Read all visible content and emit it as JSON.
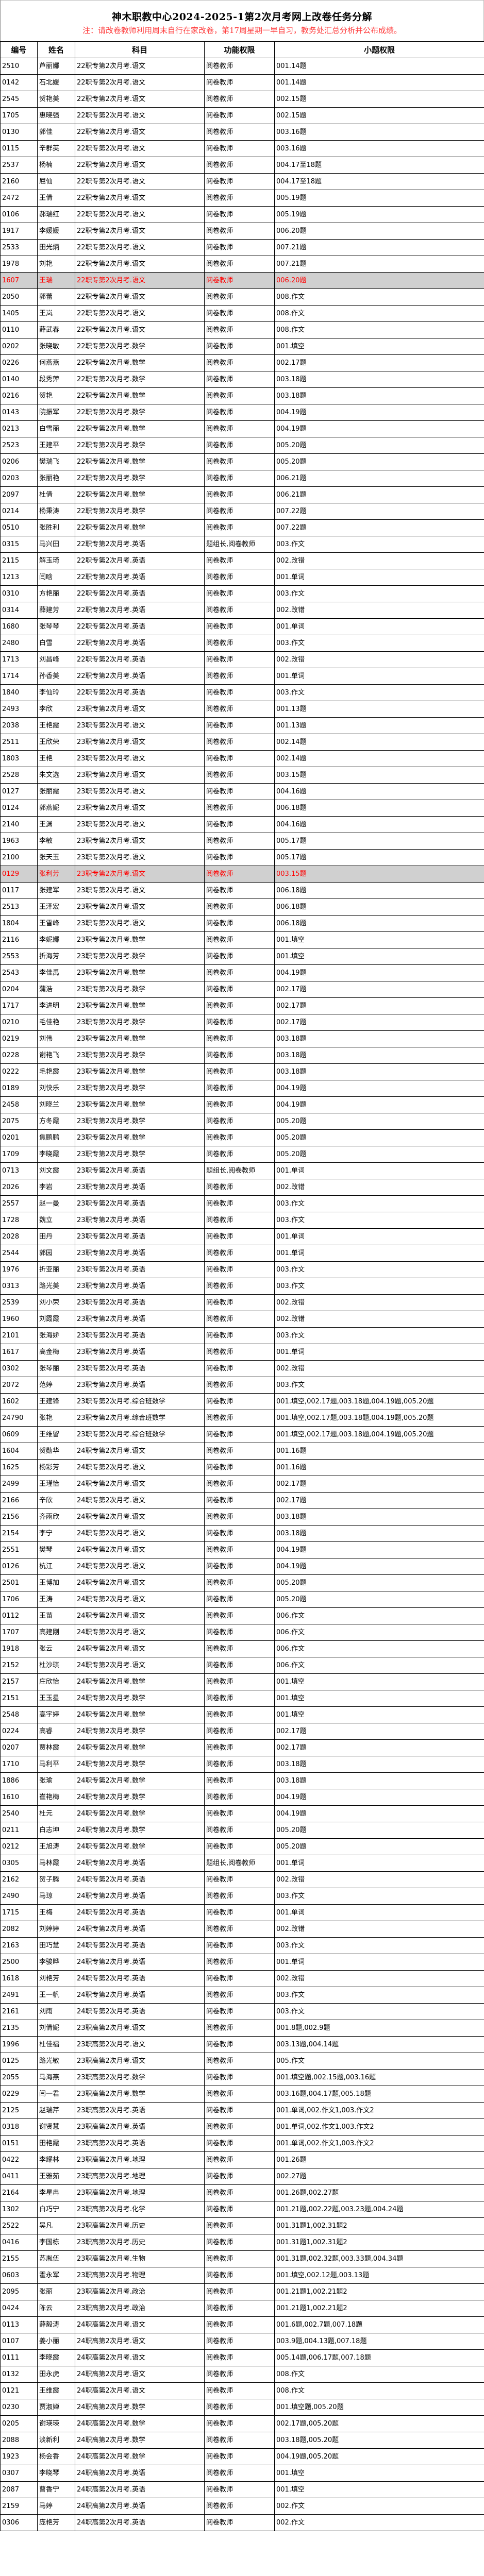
{
  "title": "神木职教中心2024-2025-1第2次月考网上改卷任务分解",
  "note": "注：请改卷教师利用周末自行在家改卷，第17周星期一早自习，教务处汇总分析并公布成绩。",
  "headers": [
    "编号",
    "姓名",
    "科目",
    "功能权限",
    "小题权限"
  ],
  "highlight_colors": {
    "background": "#d0d0d0",
    "text": "#ff0000"
  },
  "highlighted_ids": [
    "1607",
    "0129"
  ],
  "rows": [
    [
      "2510",
      "芦丽娜",
      "22职专第2次月考.语文",
      "阅卷教师",
      "001.14题"
    ],
    [
      "0142",
      "石北媛",
      "22职专第2次月考.语文",
      "阅卷教师",
      "001.14题"
    ],
    [
      "2545",
      "贺艳美",
      "22职专第2次月考.语文",
      "阅卷教师",
      "002.15题"
    ],
    [
      "1705",
      "惠晓强",
      "22职专第2次月考.语文",
      "阅卷教师",
      "002.15题"
    ],
    [
      "0130",
      "郭佳",
      "22职专第2次月考.语文",
      "阅卷教师",
      "003.16题"
    ],
    [
      "0115",
      "辛群英",
      "22职专第2次月考.语文",
      "阅卷教师",
      "003.16题"
    ],
    [
      "2537",
      "杨楠",
      "22职专第2次月考.语文",
      "阅卷教师",
      "004.17至18题"
    ],
    [
      "2160",
      "屈仙",
      "22职专第2次月考.语文",
      "阅卷教师",
      "004.17至18题"
    ],
    [
      "2472",
      "王倩",
      "22职专第2次月考.语文",
      "阅卷教师",
      "005.19题"
    ],
    [
      "0106",
      "郝瑞红",
      "22职专第2次月考.语文",
      "阅卷教师",
      "005.19题"
    ],
    [
      "1917",
      "李媛媛",
      "22职专第2次月考.语文",
      "阅卷教师",
      "006.20题"
    ],
    [
      "2533",
      "田光炳",
      "22职专第2次月考.语文",
      "阅卷教师",
      "007.21题"
    ],
    [
      "1978",
      "刘艳",
      "22职专第2次月考.语文",
      "阅卷教师",
      "007.21题"
    ],
    [
      "1607",
      "王瑞",
      "22职专第2次月考.语文",
      "阅卷教师",
      "006.20题"
    ],
    [
      "2050",
      "郭蕾",
      "22职专第2次月考.语文",
      "阅卷教师",
      "008.作文"
    ],
    [
      "1405",
      "王岚",
      "22职专第2次月考.语文",
      "阅卷教师",
      "008.作文"
    ],
    [
      "0110",
      "薛武春",
      "22职专第2次月考.语文",
      "阅卷教师",
      "008.作文"
    ],
    [
      "0202",
      "张晓敏",
      "22职专第2次月考.数学",
      "阅卷教师",
      "001.填空"
    ],
    [
      "0226",
      "何燕燕",
      "22职专第2次月考.数学",
      "阅卷教师",
      "002.17题"
    ],
    [
      "0140",
      "段秀萍",
      "22职专第2次月考.数学",
      "阅卷教师",
      "003.18题"
    ],
    [
      "0216",
      "贺艳",
      "22职专第2次月考.数学",
      "阅卷教师",
      "003.18题"
    ],
    [
      "0143",
      "院振军",
      "22职专第2次月考.数学",
      "阅卷教师",
      "004.19题"
    ],
    [
      "0213",
      "白雪丽",
      "22职专第2次月考.数学",
      "阅卷教师",
      "004.19题"
    ],
    [
      "2523",
      "王建平",
      "22职专第2次月考.数学",
      "阅卷教师",
      "005.20题"
    ],
    [
      "0206",
      "樊瑞飞",
      "22职专第2次月考.数学",
      "阅卷教师",
      "005.20题"
    ],
    [
      "0203",
      "张丽艳",
      "22职专第2次月考.数学",
      "阅卷教师",
      "006.21题"
    ],
    [
      "2097",
      "杜倩",
      "22职专第2次月考.数学",
      "阅卷教师",
      "006.21题"
    ],
    [
      "0214",
      "杨秉涛",
      "22职专第2次月考.数学",
      "阅卷教师",
      "007.22题"
    ],
    [
      "0510",
      "张胜利",
      "22职专第2次月考.数学",
      "阅卷教师",
      "007.22题"
    ],
    [
      "0315",
      "马兴田",
      "22职专第2次月考.英语",
      "题组长,阅卷教师",
      "003.作文"
    ],
    [
      "2115",
      "解玉琦",
      "22职专第2次月考.英语",
      "阅卷教师",
      "002.改错"
    ],
    [
      "1213",
      "闫晗",
      "22职专第2次月考.英语",
      "阅卷教师",
      "001.单词"
    ],
    [
      "0310",
      "方艳丽",
      "22职专第2次月考.英语",
      "阅卷教师",
      "003.作文"
    ],
    [
      "0314",
      "薛建芳",
      "22职专第2次月考.英语",
      "阅卷教师",
      "002.改错"
    ],
    [
      "1680",
      "张琴琴",
      "22职专第2次月考.英语",
      "阅卷教师",
      "001.单词"
    ],
    [
      "2480",
      "白雪",
      "22职专第2次月考.英语",
      "阅卷教师",
      "003.作文"
    ],
    [
      "1713",
      "刘昌峰",
      "22职专第2次月考.英语",
      "阅卷教师",
      "002.改错"
    ],
    [
      "1714",
      "孙香美",
      "22职专第2次月考.英语",
      "阅卷教师",
      "001.单词"
    ],
    [
      "1840",
      "李仙玲",
      "22职专第2次月考.英语",
      "阅卷教师",
      "003.作文"
    ],
    [
      "2493",
      "李欣",
      "23职专第2次月考.语文",
      "阅卷教师",
      "001.13题"
    ],
    [
      "2038",
      "王艳霞",
      "23职专第2次月考.语文",
      "阅卷教师",
      "001.13题"
    ],
    [
      "2511",
      "王欣荣",
      "23职专第2次月考.语文",
      "阅卷教师",
      "002.14题"
    ],
    [
      "1803",
      "王艳",
      "23职专第2次月考.语文",
      "阅卷教师",
      "002.14题"
    ],
    [
      "2528",
      "朱文选",
      "23职专第2次月考.语文",
      "阅卷教师",
      "003.15题"
    ],
    [
      "0127",
      "张丽霞",
      "23职专第2次月考.语文",
      "阅卷教师",
      "004.16题"
    ],
    [
      "0124",
      "郭燕妮",
      "23职专第2次月考.语文",
      "阅卷教师",
      "006.18题"
    ],
    [
      "2140",
      "王渊",
      "23职专第2次月考.语文",
      "阅卷教师",
      "004.16题"
    ],
    [
      "1963",
      "李敏",
      "23职专第2次月考.语文",
      "阅卷教师",
      "005.17题"
    ],
    [
      "2100",
      "张天玉",
      "23职专第2次月考.语文",
      "阅卷教师",
      "005.17题"
    ],
    [
      "0129",
      "张利芳",
      "23职专第2次月考.语文",
      "阅卷教师",
      "003.15题"
    ],
    [
      "0117",
      "张建军",
      "23职专第2次月考.语文",
      "阅卷教师",
      "006.18题"
    ],
    [
      "2513",
      "王泽宏",
      "23职专第2次月考.语文",
      "阅卷教师",
      "006.18题"
    ],
    [
      "1804",
      "王雪峰",
      "23职专第2次月考.语文",
      "阅卷教师",
      "006.18题"
    ],
    [
      "2116",
      "李妮娜",
      "23职专第2次月考.数学",
      "阅卷教师",
      "001.填空"
    ],
    [
      "2553",
      "折海芳",
      "23职专第2次月考.数学",
      "阅卷教师",
      "001.填空"
    ],
    [
      "2543",
      "李佳禹",
      "23职专第2次月考.数学",
      "阅卷教师",
      "004.19题"
    ],
    [
      "0204",
      "蒲浩",
      "23职专第2次月考.数学",
      "阅卷教师",
      "002.17题"
    ],
    [
      "1717",
      "李进明",
      "23职专第2次月考.数学",
      "阅卷教师",
      "002.17题"
    ],
    [
      "0210",
      "毛佳艳",
      "23职专第2次月考.数学",
      "阅卷教师",
      "002.17题"
    ],
    [
      "0219",
      "刘伟",
      "23职专第2次月考.数学",
      "阅卷教师",
      "003.18题"
    ],
    [
      "0228",
      "谢艳飞",
      "23职专第2次月考.数学",
      "阅卷教师",
      "003.18题"
    ],
    [
      "0222",
      "毛艳霞",
      "23职专第2次月考.数学",
      "阅卷教师",
      "003.18题"
    ],
    [
      "0189",
      "刘快乐",
      "23职专第2次月考.数学",
      "阅卷教师",
      "004.19题"
    ],
    [
      "2458",
      "刘晓兰",
      "23职专第2次月考.数学",
      "阅卷教师",
      "004.19题"
    ],
    [
      "2075",
      "方冬霞",
      "23职专第2次月考.数学",
      "阅卷教师",
      "005.20题"
    ],
    [
      "0201",
      "焦鹏鹏",
      "23职专第2次月考.数学",
      "阅卷教师",
      "005.20题"
    ],
    [
      "1709",
      "李晓霞",
      "23职专第2次月考.数学",
      "阅卷教师",
      "005.20题"
    ],
    [
      "0713",
      "刘文霞",
      "23职专第2次月考.英语",
      "题组长,阅卷教师",
      "001.单词"
    ],
    [
      "2026",
      "李岩",
      "23职专第2次月考.英语",
      "阅卷教师",
      "002.改错"
    ],
    [
      "2557",
      "赵一曼",
      "23职专第2次月考.英语",
      "阅卷教师",
      "003.作文"
    ],
    [
      "1728",
      "魏立",
      "23职专第2次月考.英语",
      "阅卷教师",
      "003.作文"
    ],
    [
      "2028",
      "田丹",
      "23职专第2次月考.英语",
      "阅卷教师",
      "001.单词"
    ],
    [
      "2544",
      "郭园",
      "23职专第2次月考.英语",
      "阅卷教师",
      "001.单词"
    ],
    [
      "1976",
      "折亚丽",
      "23职专第2次月考.英语",
      "阅卷教师",
      "003.作文"
    ],
    [
      "0313",
      "路光美",
      "23职专第2次月考.英语",
      "阅卷教师",
      "003.作文"
    ],
    [
      "2539",
      "刘小荣",
      "23职专第2次月考.英语",
      "阅卷教师",
      "002.改错"
    ],
    [
      "1960",
      "刘霞霞",
      "23职专第2次月考.英语",
      "阅卷教师",
      "002.改错"
    ],
    [
      "2101",
      "张海娇",
      "23职专第2次月考.英语",
      "阅卷教师",
      "003.作文"
    ],
    [
      "1617",
      "高金梅",
      "23职专第2次月考.英语",
      "阅卷教师",
      "001.单词"
    ],
    [
      "0302",
      "张琴丽",
      "23职专第2次月考.英语",
      "阅卷教师",
      "002.改错"
    ],
    [
      "2072",
      "范婷",
      "23职专第2次月考.英语",
      "阅卷教师",
      "003.作文"
    ],
    [
      "1602",
      "王建锋",
      "23职专第2次月考.综合班数学",
      "阅卷教师",
      "001.填空,002.17题,003.18题,004.19题,005.20题"
    ],
    [
      "24790",
      "张艳",
      "23职专第2次月考.综合班数学",
      "阅卷教师",
      "001.填空,002.17题,003.18题,004.19题,005.20题"
    ],
    [
      "0609",
      "王维留",
      "23职专第2次月考.综合班数学",
      "阅卷教师",
      "001.填空,002.17题,003.18题,004.19题,005.20题"
    ],
    [
      "1604",
      "贺勋华",
      "24职专第2次月考.语文",
      "阅卷教师",
      "001.16题"
    ],
    [
      "1625",
      "杨彩芳",
      "24职专第2次月考.语文",
      "阅卷教师",
      "001.16题"
    ],
    [
      "2499",
      "王瑾怡",
      "24职专第2次月考.语文",
      "阅卷教师",
      "002.17题"
    ],
    [
      "2166",
      "辛欣",
      "24职专第2次月考.语文",
      "阅卷教师",
      "002.17题"
    ],
    [
      "2156",
      "齐雨欣",
      "24职专第2次月考.语文",
      "阅卷教师",
      "003.18题"
    ],
    [
      "2154",
      "李宁",
      "24职专第2次月考.语文",
      "阅卷教师",
      "003.18题"
    ],
    [
      "2551",
      "樊琴",
      "24职专第2次月考.语文",
      "阅卷教师",
      "004.19题"
    ],
    [
      "0126",
      "杭江",
      "24职专第2次月考.语文",
      "阅卷教师",
      "004.19题"
    ],
    [
      "2501",
      "王博加",
      "24职专第2次月考.语文",
      "阅卷教师",
      "005.20题"
    ],
    [
      "1706",
      "王涛",
      "24职专第2次月考.语文",
      "阅卷教师",
      "005.20题"
    ],
    [
      "0112",
      "王苗",
      "24职专第2次月考.语文",
      "阅卷教师",
      "006.作文"
    ],
    [
      "1707",
      "高建刚",
      "24职专第2次月考.语文",
      "阅卷教师",
      "006.作文"
    ],
    [
      "1918",
      "张云",
      "24职专第2次月考.语文",
      "阅卷教师",
      "006.作文"
    ],
    [
      "2152",
      "杜沙琪",
      "24职专第2次月考.语文",
      "阅卷教师",
      "006.作文"
    ],
    [
      "2157",
      "庄欣怡",
      "24职专第2次月考.数学",
      "阅卷教师",
      "001.填空"
    ],
    [
      "2151",
      "王玉星",
      "24职专第2次月考.数学",
      "阅卷教师",
      "001.填空"
    ],
    [
      "2548",
      "高宇婷",
      "24职专第2次月考.数学",
      "阅卷教师",
      "001.填空"
    ],
    [
      "0224",
      "高睿",
      "24职专第2次月考.数学",
      "阅卷教师",
      "002.17题"
    ],
    [
      "0207",
      "贾林霞",
      "24职专第2次月考.数学",
      "阅卷教师",
      "002.17题"
    ],
    [
      "1710",
      "马利平",
      "24职专第2次月考.数学",
      "阅卷教师",
      "003.18题"
    ],
    [
      "1886",
      "张瑜",
      "24职专第2次月考.数学",
      "阅卷教师",
      "003.18题"
    ],
    [
      "1610",
      "崔艳梅",
      "24职专第2次月考.数学",
      "阅卷教师",
      "004.19题"
    ],
    [
      "2540",
      "杜元",
      "24职专第2次月考.数学",
      "阅卷教师",
      "004.19题"
    ],
    [
      "0211",
      "白志坤",
      "24职专第2次月考.数学",
      "阅卷教师",
      "005.20题"
    ],
    [
      "0212",
      "王旭涛",
      "24职专第2次月考.数学",
      "阅卷教师",
      "005.20题"
    ],
    [
      "0305",
      "马林霞",
      "24职专第2次月考.英语",
      "题组长,阅卷教师",
      "001.单词"
    ],
    [
      "2162",
      "贺子腾",
      "24职专第2次月考.英语",
      "阅卷教师",
      "002.改错"
    ],
    [
      "2490",
      "马琼",
      "24职专第2次月考.英语",
      "阅卷教师",
      "003.作文"
    ],
    [
      "1715",
      "王梅",
      "24职专第2次月考.英语",
      "阅卷教师",
      "001.单词"
    ],
    [
      "2082",
      "刘婷婷",
      "24职专第2次月考.英语",
      "阅卷教师",
      "002.改错"
    ],
    [
      "2163",
      "田巧慧",
      "24职专第2次月考.英语",
      "阅卷教师",
      "003.作文"
    ],
    [
      "2500",
      "李骏晔",
      "24职专第2次月考.英语",
      "阅卷教师",
      "001.单词"
    ],
    [
      "1618",
      "刘艳芳",
      "24职专第2次月考.英语",
      "阅卷教师",
      "002.改错"
    ],
    [
      "2491",
      "王一帆",
      "24职专第2次月考.英语",
      "阅卷教师",
      "003.作文"
    ],
    [
      "2161",
      "刘雨",
      "24职专第2次月考.英语",
      "阅卷教师",
      "003.作文"
    ],
    [
      "2135",
      "刘倩妮",
      "23职高第2次月考.语文",
      "阅卷教师",
      "001.8题,002.9题"
    ],
    [
      "1996",
      "杜佳福",
      "23职高第2次月考.语文",
      "阅卷教师",
      "003.13题,004.14题"
    ],
    [
      "0125",
      "路光敏",
      "23职高第2次月考.语文",
      "阅卷教师",
      "005.作文"
    ],
    [
      "2055",
      "马海燕",
      "23职高第2次月考.数学",
      "阅卷教师",
      "001.填空题,002.15题,003.16题"
    ],
    [
      "0229",
      "闫一君",
      "23职高第2次月考.数学",
      "阅卷教师",
      "003.16题,004.17题,005.18题"
    ],
    [
      "2125",
      "赵瑞芹",
      "23职高第2次月考.英语",
      "阅卷教师",
      "001.单词,002.作文1,003.作文2"
    ],
    [
      "0318",
      "谢贤慧",
      "23职高第2次月考.英语",
      "阅卷教师",
      "001.单词,002.作文1,003.作文2"
    ],
    [
      "0151",
      "田艳霞",
      "23职高第2次月考.英语",
      "阅卷教师",
      "001.单词,002.作文1,003.作文2"
    ],
    [
      "0422",
      "李耀林",
      "23职高第2次月考.地理",
      "阅卷教师",
      "001.26题"
    ],
    [
      "0411",
      "王雅茹",
      "23职高第2次月考.地理",
      "阅卷教师",
      "002.27题"
    ],
    [
      "2164",
      "李星冉",
      "23职高第2次月考.地理",
      "阅卷教师",
      "001.26题,002.27题"
    ],
    [
      "1302",
      "白巧宁",
      "23职高第2次月考.化学",
      "阅卷教师",
      "001.21题,002.22题,003.23题,004.24题"
    ],
    [
      "2522",
      "吴凡",
      "23职高第2次月考.历史",
      "阅卷教师",
      "001.31题1,002.31题2"
    ],
    [
      "0416",
      "李国栋",
      "23职高第2次月考.历史",
      "阅卷教师",
      "001.31题1,002.31题2"
    ],
    [
      "2155",
      "苏胤伍",
      "23职高第2次月考.生物",
      "阅卷教师",
      "001.31题,002.32题,003.33题,004.34题"
    ],
    [
      "0603",
      "霍永军",
      "23职高第2次月考.物理",
      "阅卷教师",
      "001.填空,002.12题,003.13题"
    ],
    [
      "2095",
      "张丽",
      "23职高第2次月考.政治",
      "阅卷教师",
      "001.21题1,002.21题2"
    ],
    [
      "0424",
      "陈云",
      "23职高第2次月考.政治",
      "阅卷教师",
      "001.21题1,002.21题2"
    ],
    [
      "0113",
      "薛毅涛",
      "24职高第2次月考.语文",
      "阅卷教师",
      "001.6题,002.7题,007.18题"
    ],
    [
      "0107",
      "姜小丽",
      "24职高第2次月考.语文",
      "阅卷教师",
      "003.9题,004.13题,007.18题"
    ],
    [
      "0111",
      "李晓霞",
      "24职高第2次月考.语文",
      "阅卷教师",
      "005.14题,006.17题,007.18题"
    ],
    [
      "0132",
      "田永虎",
      "24职高第2次月考.语文",
      "阅卷教师",
      "008.作文"
    ],
    [
      "0121",
      "王维霞",
      "24职高第2次月考.语文",
      "阅卷教师",
      "008.作文"
    ],
    [
      "0230",
      "贾淑婵",
      "24职高第2次月考.数学",
      "阅卷教师",
      "001.填空题,005.20题"
    ],
    [
      "0205",
      "谢瑛瑛",
      "24职高第2次月考.数学",
      "阅卷教师",
      "002.17题,005.20题"
    ],
    [
      "2088",
      "淡新利",
      "24职高第2次月考.数学",
      "阅卷教师",
      "003.18题,005.20题"
    ],
    [
      "1923",
      "杨会香",
      "24职高第2次月考.数学",
      "阅卷教师",
      "004.19题,005.20题"
    ],
    [
      "0307",
      "李晓琴",
      "24职高第2次月考.英语",
      "阅卷教师",
      "001.填空"
    ],
    [
      "2087",
      "曹香宁",
      "24职高第2次月考.英语",
      "阅卷教师",
      "001.填空"
    ],
    [
      "2159",
      "马婷",
      "24职高第2次月考.英语",
      "阅卷教师",
      "002.作文"
    ],
    [
      "0306",
      "庞艳芳",
      "24职高第2次月考.英语",
      "阅卷教师",
      "002.作文"
    ]
  ]
}
